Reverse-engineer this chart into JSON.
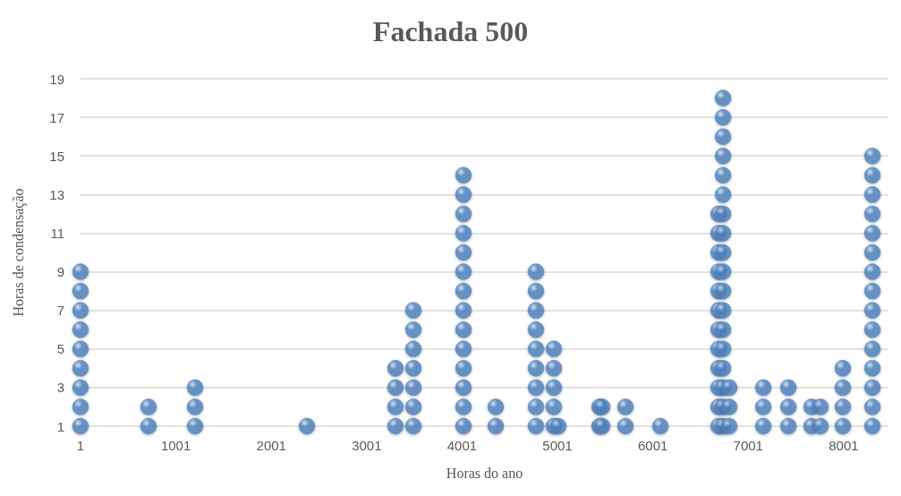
{
  "chart_data": {
    "type": "scatter",
    "title": "Fachada 500",
    "xlabel": "Horas do ano",
    "ylabel": "Horas de condensação",
    "x": [
      1,
      1,
      1,
      1,
      1,
      1,
      1,
      1,
      1,
      714,
      714,
      1202,
      1202,
      1202,
      2375,
      3303,
      3303,
      3303,
      3303,
      3491,
      3491,
      3491,
      3491,
      3491,
      3491,
      3491,
      4016,
      4016,
      4016,
      4016,
      4016,
      4016,
      4016,
      4016,
      4016,
      4016,
      4016,
      4016,
      4016,
      4016,
      4354,
      4354,
      4776,
      4776,
      4776,
      4776,
      4776,
      4776,
      4776,
      4776,
      4776,
      4963,
      4963,
      4963,
      4963,
      4963,
      5010,
      5442,
      5442,
      5470,
      5470,
      5714,
      5714,
      6080,
      6690,
      6690,
      6690,
      6690,
      6690,
      6690,
      6690,
      6690,
      6690,
      6690,
      6690,
      6690,
      6737,
      6737,
      6737,
      6737,
      6737,
      6737,
      6737,
      6737,
      6737,
      6737,
      6737,
      6737,
      6737,
      6737,
      6737,
      6737,
      6737,
      6737,
      6802,
      6802,
      6802,
      7159,
      7159,
      7159,
      7422,
      7422,
      7422,
      7665,
      7665,
      7759,
      7759,
      7993,
      7993,
      7993,
      7993,
      8303,
      8303,
      8303,
      8303,
      8303,
      8303,
      8303,
      8303,
      8303,
      8303,
      8303,
      8303,
      8303,
      8303,
      8303
    ],
    "values": [
      1,
      2,
      3,
      4,
      5,
      6,
      7,
      8,
      9,
      1,
      2,
      1,
      2,
      3,
      1,
      1,
      2,
      3,
      4,
      1,
      2,
      3,
      4,
      5,
      6,
      7,
      1,
      2,
      3,
      4,
      5,
      6,
      7,
      8,
      9,
      10,
      11,
      12,
      13,
      14,
      1,
      2,
      1,
      2,
      3,
      4,
      5,
      6,
      7,
      8,
      9,
      1,
      2,
      3,
      4,
      5,
      1,
      1,
      2,
      1,
      2,
      1,
      2,
      1,
      1,
      2,
      3,
      4,
      5,
      6,
      7,
      8,
      9,
      10,
      11,
      12,
      1,
      2,
      3,
      4,
      5,
      6,
      7,
      8,
      9,
      10,
      11,
      12,
      13,
      14,
      15,
      16,
      17,
      18,
      1,
      2,
      3,
      1,
      2,
      3,
      1,
      2,
      3,
      1,
      2,
      1,
      2,
      1,
      2,
      3,
      4,
      1,
      2,
      3,
      4,
      5,
      6,
      7,
      8,
      9,
      10,
      11,
      12,
      13,
      14,
      15
    ],
    "color": "#4f81bd",
    "marker": "circle",
    "grid": "y",
    "xlim": [
      1,
      8471
    ],
    "xticks": [
      1,
      1001,
      2001,
      3001,
      4001,
      5001,
      6001,
      7001,
      8001
    ],
    "ylim": [
      1,
      19
    ],
    "yticks": [
      1,
      3,
      5,
      7,
      9,
      11,
      13,
      15,
      17,
      19
    ]
  }
}
